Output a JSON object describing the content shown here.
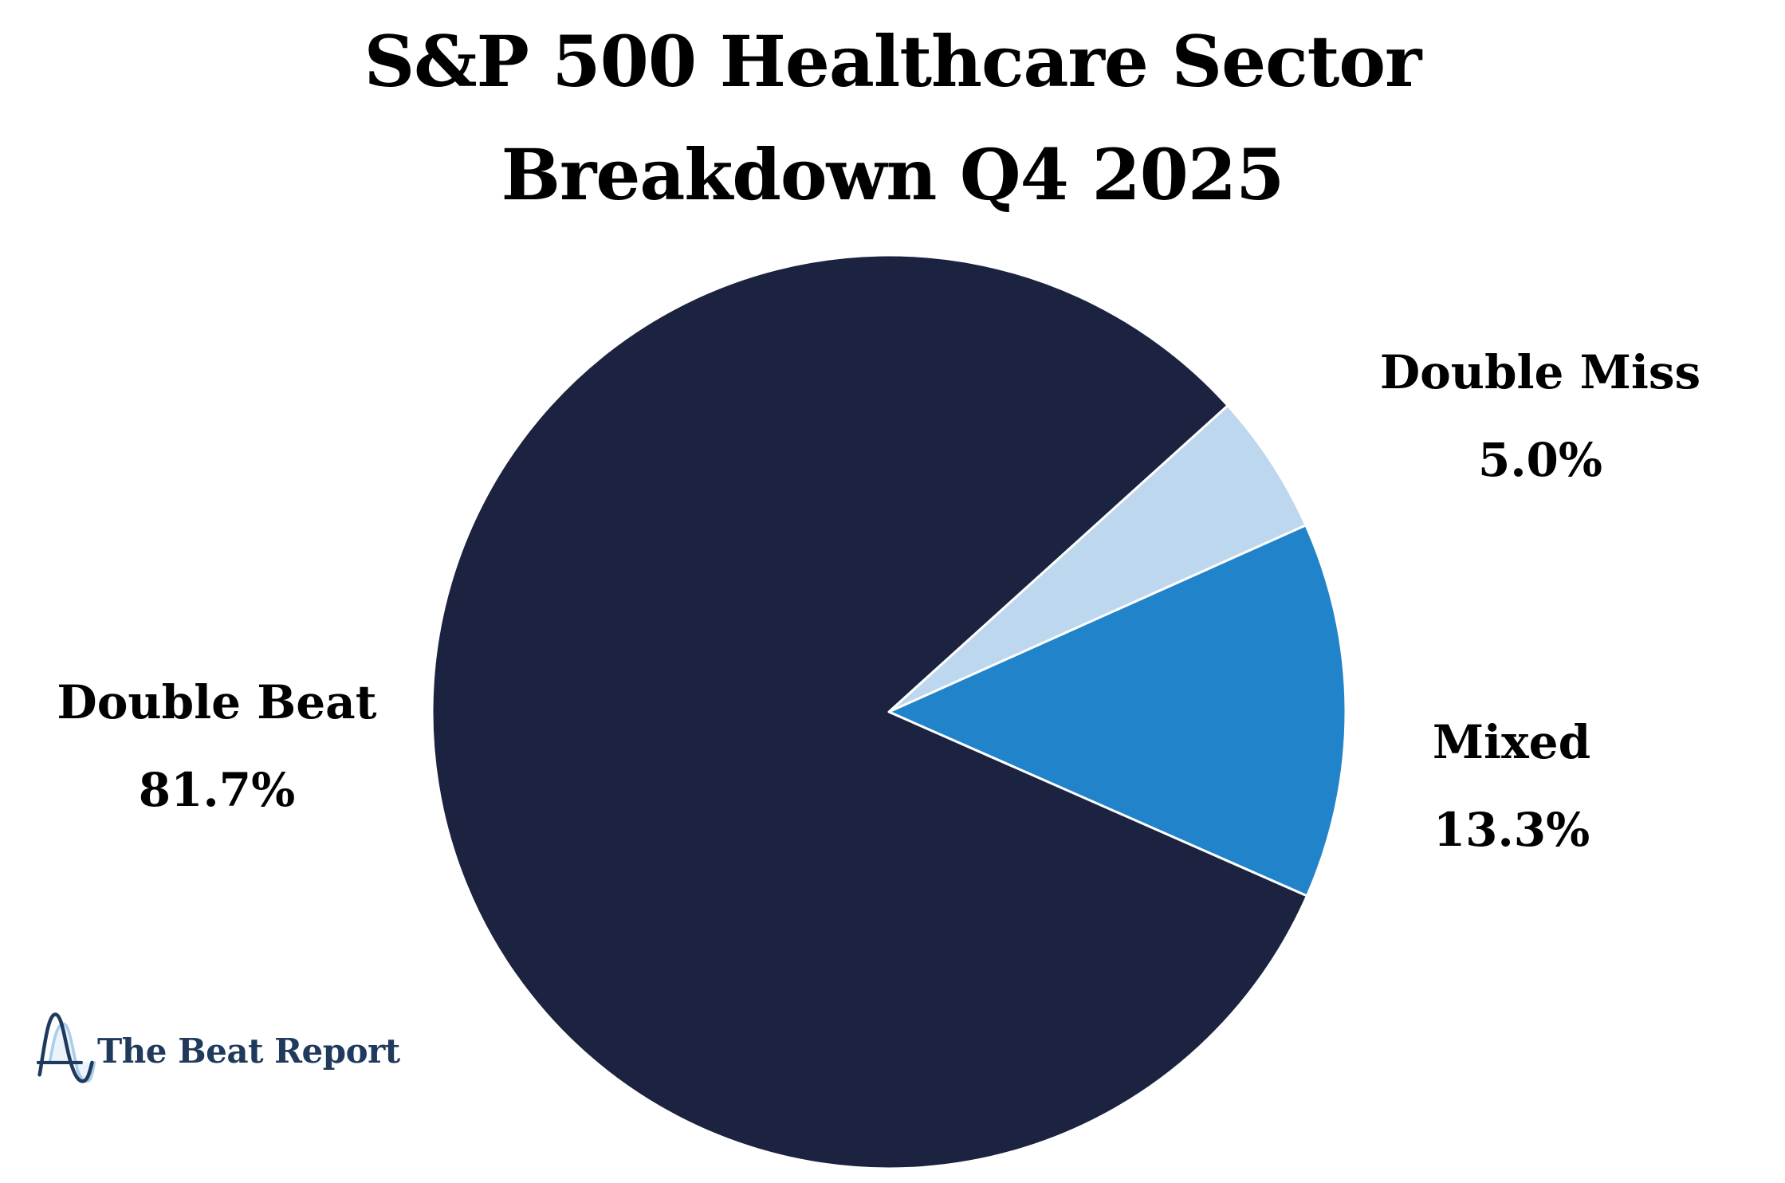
{
  "title": {
    "line1": "S&P 500 Healthcare Sector",
    "line2": "Breakdown Q4 2025"
  },
  "chart_data": {
    "type": "pie",
    "title": "S&P 500 Healthcare Sector Breakdown Q4 2025",
    "slices": [
      {
        "name": "Double Miss",
        "value": 5.0,
        "display_pct": "5.0%",
        "color": "#bcd7ee"
      },
      {
        "name": "Mixed",
        "value": 13.3,
        "display_pct": "13.3%",
        "color": "#2183c9"
      },
      {
        "name": "Double Beat",
        "value": 81.7,
        "display_pct": "81.7%",
        "color": "#1c2340"
      }
    ],
    "start_angle_deg": 42.12,
    "direction": "clockwise",
    "wedge_edge_color": "#ffffff",
    "wedge_edge_width": 3,
    "labels_style": "direct callouts outside pie, two lines: name and percent",
    "legend_position": "none"
  },
  "branding": {
    "logo_text": "The Beat Report",
    "logo_text_color": "#1f3a5c",
    "logo_wave_dark": "#1f3a5c",
    "logo_wave_light": "#a9cdea",
    "logo_wave_light_fill": "#ddeaf6"
  }
}
